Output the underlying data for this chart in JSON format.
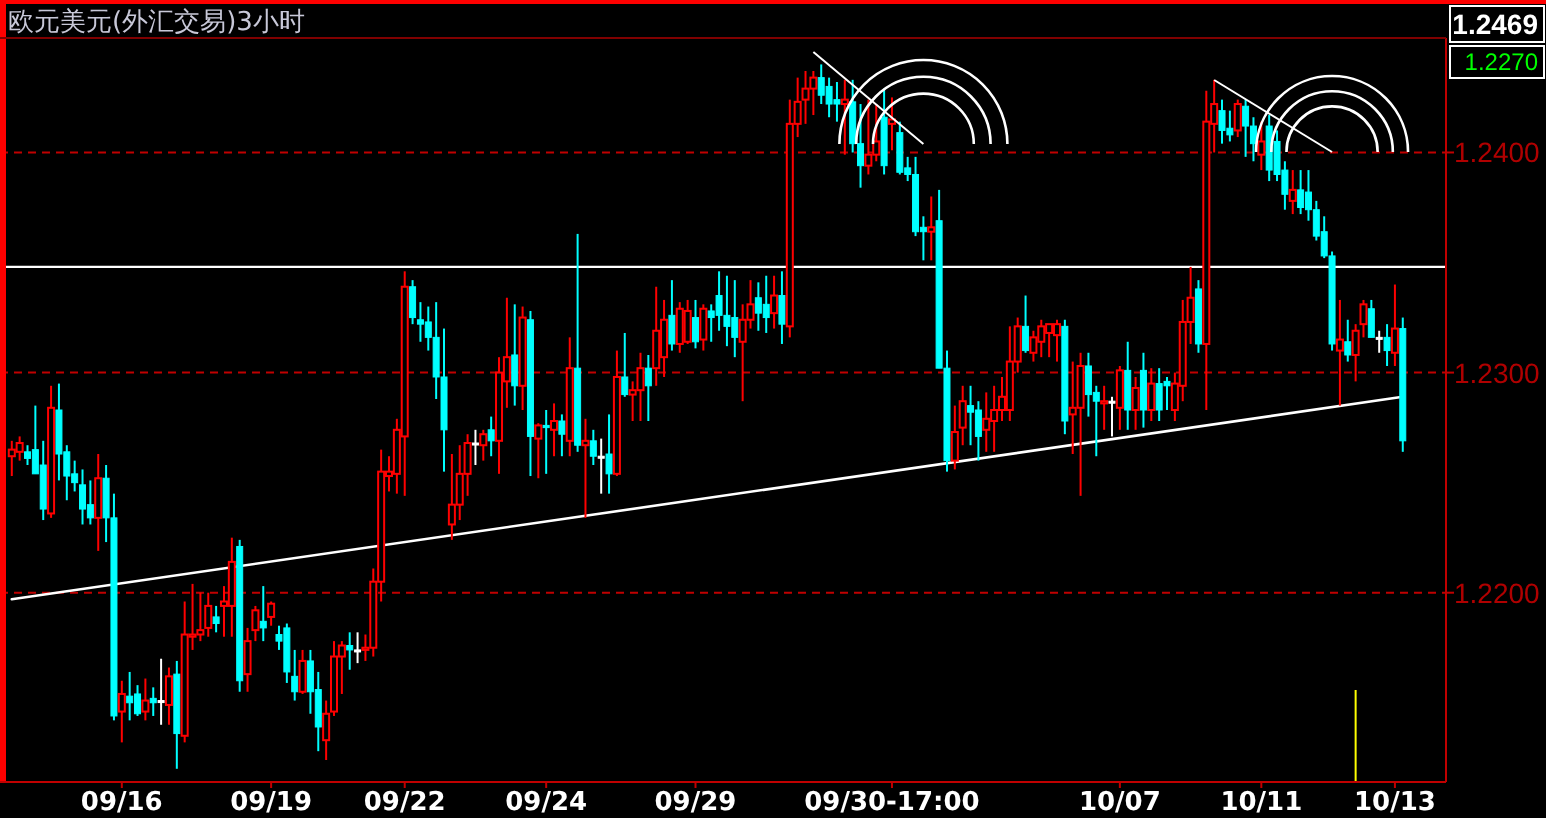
{
  "chart_data": {
    "type": "candlestick",
    "title": "欧元美元(外汇交易)3小时",
    "annotations": [
      "1.2469",
      "1.2270"
    ],
    "ylim": [
      1.2114,
      1.2452
    ],
    "yticks": [
      {
        "value": 1.22,
        "label": "1.2200"
      },
      {
        "value": 1.23,
        "label": "1.2300"
      },
      {
        "value": 1.24,
        "label": "1.2400"
      }
    ],
    "grid": "y",
    "ref_lines": [
      {
        "axis": "y",
        "value": 1.2348,
        "color": "#ffffff"
      }
    ],
    "categories": [
      null,
      null,
      null,
      null,
      null,
      null,
      null,
      null,
      null,
      null,
      null,
      null,
      null,
      null,
      "09/16",
      null,
      null,
      null,
      null,
      null,
      null,
      null,
      null,
      null,
      null,
      null,
      null,
      null,
      null,
      null,
      null,
      null,
      null,
      "09/19",
      null,
      null,
      null,
      null,
      null,
      null,
      null,
      null,
      null,
      null,
      null,
      null,
      null,
      null,
      null,
      null,
      "09/22",
      null,
      null,
      null,
      null,
      null,
      null,
      null,
      null,
      null,
      null,
      null,
      null,
      null,
      null,
      null,
      null,
      null,
      "09/24",
      null,
      null,
      null,
      null,
      null,
      null,
      null,
      null,
      null,
      null,
      null,
      null,
      null,
      null,
      null,
      null,
      null,
      null,
      "09/29",
      null,
      null,
      null,
      null,
      null,
      null,
      null,
      null,
      null,
      null,
      null,
      null,
      null,
      null,
      null,
      null,
      null,
      null,
      null,
      null,
      null,
      null,
      null,
      null,
      "09/30-17:00",
      null,
      null,
      null,
      null,
      null,
      null,
      null,
      null,
      null,
      null,
      null,
      null,
      null,
      null,
      null,
      null,
      null,
      null,
      null,
      null,
      null,
      null,
      null,
      null,
      null,
      null,
      null,
      null,
      "10/07",
      null,
      null,
      null,
      null,
      null,
      null,
      null,
      null,
      null,
      null,
      null,
      null,
      null,
      null,
      null,
      null,
      null,
      "10/11",
      null,
      null,
      null,
      null,
      null,
      null,
      null,
      null,
      null,
      null,
      null,
      null,
      null,
      null,
      null,
      null,
      "10/13",
      null
    ],
    "ohlc": [
      [
        1.2262,
        1.2269,
        1.2253,
        1.2265
      ],
      [
        1.2264,
        1.2271,
        1.226,
        1.2268
      ],
      [
        1.2264,
        1.2267,
        1.2258,
        1.2261
      ],
      [
        1.2265,
        1.2285,
        1.2254,
        1.2254
      ],
      [
        1.2258,
        1.2269,
        1.2233,
        1.2238
      ],
      [
        1.2236,
        1.2294,
        1.2234,
        1.2284
      ],
      [
        1.2283,
        1.2295,
        1.2251,
        1.2263
      ],
      [
        1.2264,
        1.2267,
        1.2242,
        1.2253
      ],
      [
        1.2254,
        1.226,
        1.2246,
        1.225
      ],
      [
        1.2249,
        1.2256,
        1.2231,
        1.2238
      ],
      [
        1.224,
        1.2251,
        1.2231,
        1.2234
      ],
      [
        1.2234,
        1.2263,
        1.2219,
        1.2252
      ],
      [
        1.2252,
        1.2258,
        1.2223,
        1.2234
      ],
      [
        1.2234,
        1.2245,
        1.2142,
        1.2144
      ],
      [
        1.2146,
        1.216,
        1.2132,
        1.2154
      ],
      [
        1.2153,
        1.2164,
        1.2142,
        1.215
      ],
      [
        1.2154,
        1.2158,
        1.2144,
        1.2145
      ],
      [
        1.2146,
        1.2161,
        1.2142,
        1.2151
      ],
      [
        1.2152,
        1.2157,
        1.2144,
        1.215
      ],
      [
        1.2151,
        1.217,
        1.214,
        1.2151
      ],
      [
        1.2149,
        1.2166,
        1.214,
        1.2162
      ],
      [
        1.2163,
        1.2169,
        1.212,
        1.2136
      ],
      [
        1.2135,
        1.2196,
        1.2132,
        1.2181
      ],
      [
        1.218,
        1.2204,
        1.2174,
        1.2181
      ],
      [
        1.2181,
        1.22,
        1.2178,
        1.2183
      ],
      [
        1.2184,
        1.22,
        1.218,
        1.2194
      ],
      [
        1.2189,
        1.2194,
        1.2182,
        1.2186
      ],
      [
        1.2194,
        1.2203,
        1.218,
        1.2196
      ],
      [
        1.2194,
        1.2225,
        1.218,
        1.2214
      ],
      [
        1.2221,
        1.2224,
        1.2155,
        1.216
      ],
      [
        1.2163,
        1.2184,
        1.2155,
        1.2178
      ],
      [
        1.2183,
        1.2194,
        1.2178,
        1.2192
      ],
      [
        1.2187,
        1.2203,
        1.2178,
        1.2184
      ],
      [
        1.2189,
        1.2196,
        1.2185,
        1.2195
      ],
      [
        1.2181,
        1.2185,
        1.2174,
        1.2178
      ],
      [
        1.2184,
        1.2186,
        1.2159,
        1.2164
      ],
      [
        1.2162,
        1.2174,
        1.2151,
        1.2155
      ],
      [
        1.2155,
        1.2174,
        1.2154,
        1.2169
      ],
      [
        1.2169,
        1.2174,
        1.2145,
        1.2155
      ],
      [
        1.2156,
        1.2164,
        1.2128,
        1.2139
      ],
      [
        1.2133,
        1.2151,
        1.2124,
        1.2145
      ],
      [
        1.2146,
        1.2178,
        1.2144,
        1.2171
      ],
      [
        1.2171,
        1.2178,
        1.2154,
        1.2176
      ],
      [
        1.2176,
        1.2182,
        1.2165,
        1.2174
      ],
      [
        1.2174,
        1.2182,
        1.2168,
        1.2174
      ],
      [
        1.2174,
        1.2181,
        1.2169,
        1.2175
      ],
      [
        1.2175,
        1.2211,
        1.2171,
        1.2205
      ],
      [
        1.2205,
        1.2265,
        1.2196,
        1.2255
      ],
      [
        1.2253,
        1.2262,
        1.2246,
        1.2255
      ],
      [
        1.2254,
        1.2279,
        1.2245,
        1.2274
      ],
      [
        1.2271,
        1.2346,
        1.2244,
        1.2339
      ],
      [
        1.2339,
        1.2342,
        1.2322,
        1.2325
      ],
      [
        1.2324,
        1.2332,
        1.2314,
        1.2322
      ],
      [
        1.2323,
        1.233,
        1.231,
        1.2316
      ],
      [
        1.2316,
        1.2332,
        1.2288,
        1.2298
      ],
      [
        1.2298,
        1.232,
        1.2255,
        1.2274
      ],
      [
        1.2231,
        1.2263,
        1.2224,
        1.224
      ],
      [
        1.224,
        1.2267,
        1.2233,
        1.2254
      ],
      [
        1.2254,
        1.2272,
        1.2244,
        1.2268
      ],
      [
        1.2268,
        1.2274,
        1.2258,
        1.2268
      ],
      [
        1.2267,
        1.2274,
        1.226,
        1.2272
      ],
      [
        1.2274,
        1.228,
        1.2262,
        1.2269
      ],
      [
        1.2269,
        1.2307,
        1.2254,
        1.23
      ],
      [
        1.2296,
        1.2334,
        1.2284,
        1.2307
      ],
      [
        1.2308,
        1.2331,
        1.2285,
        1.2294
      ],
      [
        1.2294,
        1.233,
        1.2283,
        1.2325
      ],
      [
        1.2324,
        1.2328,
        1.2253,
        1.2271
      ],
      [
        1.227,
        1.2277,
        1.2252,
        1.2276
      ],
      [
        1.2276,
        1.2283,
        1.2254,
        1.2275
      ],
      [
        1.2274,
        1.2286,
        1.2262,
        1.2278
      ],
      [
        1.2278,
        1.2281,
        1.2262,
        1.2272
      ],
      [
        1.2269,
        1.2316,
        1.2262,
        1.2302
      ],
      [
        1.2302,
        1.2363,
        1.2264,
        1.2267
      ],
      [
        1.2267,
        1.2279,
        1.2234,
        1.2269
      ],
      [
        1.2269,
        1.2274,
        1.2258,
        1.2262
      ],
      [
        1.2262,
        1.227,
        1.2245,
        1.2262
      ],
      [
        1.2263,
        1.2281,
        1.2245,
        1.2254
      ],
      [
        1.2254,
        1.231,
        1.2253,
        1.2298
      ],
      [
        1.2298,
        1.2318,
        1.2289,
        1.229
      ],
      [
        1.229,
        1.2296,
        1.2278,
        1.2292
      ],
      [
        1.2292,
        1.2309,
        1.2278,
        1.2302
      ],
      [
        1.2302,
        1.2308,
        1.2278,
        1.2294
      ],
      [
        1.2302,
        1.2339,
        1.2294,
        1.2319
      ],
      [
        1.2307,
        1.2333,
        1.2298,
        1.2324
      ],
      [
        1.2326,
        1.2342,
        1.231,
        1.2313
      ],
      [
        1.2313,
        1.2332,
        1.2309,
        1.2329
      ],
      [
        1.2314,
        1.2333,
        1.2313,
        1.2328
      ],
      [
        1.2325,
        1.2333,
        1.2311,
        1.2314
      ],
      [
        1.2315,
        1.2331,
        1.231,
        1.2329
      ],
      [
        1.2328,
        1.2331,
        1.2314,
        1.2325
      ],
      [
        1.2335,
        1.2346,
        1.2319,
        1.2326
      ],
      [
        1.2326,
        1.2344,
        1.2312,
        1.2321
      ],
      [
        1.2325,
        1.2342,
        1.2307,
        1.2316
      ],
      [
        1.2314,
        1.2331,
        1.2287,
        1.2324
      ],
      [
        1.2324,
        1.2342,
        1.232,
        1.2331
      ],
      [
        1.2334,
        1.2341,
        1.2319,
        1.2327
      ],
      [
        1.2331,
        1.2344,
        1.2318,
        1.2325
      ],
      [
        1.2327,
        1.2344,
        1.232,
        1.2335
      ],
      [
        1.2335,
        1.2346,
        1.2313,
        1.2322
      ],
      [
        1.2321,
        1.2424,
        1.2316,
        1.2413
      ],
      [
        1.2413,
        1.2434,
        1.2407,
        1.2423
      ],
      [
        1.2424,
        1.2437,
        1.2413,
        1.2429
      ],
      [
        1.2429,
        1.2437,
        1.2417,
        1.2434
      ],
      [
        1.2434,
        1.244,
        1.2422,
        1.2426
      ],
      [
        1.243,
        1.2434,
        1.2416,
        1.2422
      ],
      [
        1.2424,
        1.2432,
        1.2414,
        1.2422
      ],
      [
        1.2422,
        1.2433,
        1.2399,
        1.2424
      ],
      [
        1.2423,
        1.2433,
        1.24,
        1.2404
      ],
      [
        1.2404,
        1.2422,
        1.2384,
        1.2394
      ],
      [
        1.2394,
        1.2424,
        1.239,
        1.2399
      ],
      [
        1.2399,
        1.2422,
        1.2396,
        1.2405
      ],
      [
        1.2416,
        1.2429,
        1.239,
        1.2394
      ],
      [
        1.2413,
        1.2425,
        1.2401,
        1.2415
      ],
      [
        1.2409,
        1.2414,
        1.239,
        1.2391
      ],
      [
        1.2393,
        1.2398,
        1.2387,
        1.239
      ],
      [
        1.239,
        1.2398,
        1.2362,
        1.2364
      ],
      [
        1.2366,
        1.2371,
        1.2351,
        1.2364
      ],
      [
        1.2364,
        1.238,
        1.2351,
        1.2366
      ],
      [
        1.2369,
        1.2383,
        1.2302,
        1.2302
      ],
      [
        1.2302,
        1.231,
        1.2255,
        1.226
      ],
      [
        1.226,
        1.2285,
        1.2256,
        1.2273
      ],
      [
        1.2275,
        1.2294,
        1.2267,
        1.2287
      ],
      [
        1.2285,
        1.2294,
        1.2267,
        1.2282
      ],
      [
        1.2283,
        1.2287,
        1.226,
        1.2271
      ],
      [
        1.2274,
        1.2291,
        1.2264,
        1.2279
      ],
      [
        1.2278,
        1.2294,
        1.2264,
        1.2283
      ],
      [
        1.2283,
        1.2298,
        1.2278,
        1.2289
      ],
      [
        1.2283,
        1.2321,
        1.2278,
        1.2305
      ],
      [
        1.2305,
        1.2325,
        1.23,
        1.2321
      ],
      [
        1.2321,
        1.2335,
        1.2309,
        1.231
      ],
      [
        1.2309,
        1.2319,
        1.2305,
        1.2316
      ],
      [
        1.2314,
        1.2324,
        1.2307,
        1.2321
      ],
      [
        1.2318,
        1.2322,
        1.2307,
        1.2322
      ],
      [
        1.2317,
        1.2324,
        1.2305,
        1.2322
      ],
      [
        1.2321,
        1.2324,
        1.2272,
        1.2278
      ],
      [
        1.2281,
        1.2305,
        1.2263,
        1.2284
      ],
      [
        1.2284,
        1.2309,
        1.2244,
        1.2303
      ],
      [
        1.2303,
        1.2309,
        1.228,
        1.229
      ],
      [
        1.2291,
        1.2294,
        1.2262,
        1.2287
      ],
      [
        1.2286,
        1.2294,
        1.2274,
        1.2287
      ],
      [
        1.2287,
        1.2289,
        1.2271,
        1.2287
      ],
      [
        1.2284,
        1.2303,
        1.2274,
        1.2301
      ],
      [
        1.2301,
        1.2314,
        1.2274,
        1.2283
      ],
      [
        1.2283,
        1.2298,
        1.2274,
        1.2293
      ],
      [
        1.2301,
        1.2309,
        1.2275,
        1.2283
      ],
      [
        1.2283,
        1.2302,
        1.2278,
        1.2295
      ],
      [
        1.2295,
        1.2302,
        1.2278,
        1.2283
      ],
      [
        1.2296,
        1.2298,
        1.2283,
        1.2294
      ],
      [
        1.2283,
        1.23,
        1.2278,
        1.2295
      ],
      [
        1.2294,
        1.2333,
        1.2287,
        1.2323
      ],
      [
        1.2323,
        1.2348,
        1.2313,
        1.2334
      ],
      [
        1.2338,
        1.2342,
        1.2309,
        1.2313
      ],
      [
        1.2313,
        1.2428,
        1.2283,
        1.2414
      ],
      [
        1.2413,
        1.2433,
        1.24,
        1.2422
      ],
      [
        1.2419,
        1.2424,
        1.2404,
        1.241
      ],
      [
        1.2411,
        1.2419,
        1.2405,
        1.2408
      ],
      [
        1.241,
        1.2424,
        1.2407,
        1.2422
      ],
      [
        1.2421,
        1.2424,
        1.2398,
        1.2412
      ],
      [
        1.2412,
        1.2416,
        1.2396,
        1.2404
      ],
      [
        1.2399,
        1.2414,
        1.2392,
        1.2405
      ],
      [
        1.2412,
        1.2417,
        1.2387,
        1.2392
      ],
      [
        1.2405,
        1.241,
        1.2387,
        1.239
      ],
      [
        1.2392,
        1.2396,
        1.2374,
        1.2381
      ],
      [
        1.2378,
        1.2392,
        1.2372,
        1.2383
      ],
      [
        1.2383,
        1.2392,
        1.2372,
        1.2375
      ],
      [
        1.2382,
        1.2392,
        1.2369,
        1.2374
      ],
      [
        1.2374,
        1.2378,
        1.236,
        1.2362
      ],
      [
        1.2364,
        1.2371,
        1.2352,
        1.2353
      ],
      [
        1.2353,
        1.2355,
        1.231,
        1.2313
      ],
      [
        1.231,
        1.2333,
        1.2285,
        1.2315
      ],
      [
        1.2314,
        1.2324,
        1.2305,
        1.2308
      ],
      [
        1.2308,
        1.2322,
        1.2296,
        1.2319
      ],
      [
        1.2322,
        1.2333,
        1.2316,
        1.2331
      ],
      [
        1.2329,
        1.2333,
        1.2316,
        1.2316
      ],
      [
        1.2316,
        1.2319,
        1.2309,
        1.2316
      ],
      [
        1.2316,
        1.2322,
        1.2303,
        1.231
      ],
      [
        1.2309,
        1.234,
        1.2303,
        1.232
      ],
      [
        1.232,
        1.2325,
        1.2264,
        1.2269
      ]
    ],
    "colors": [
      "#ff0000",
      "#ff0000",
      "#00ffff",
      "#00ffff",
      "#00ffff",
      "#ff0000",
      "#00ffff",
      "#00ffff",
      "#00ffff",
      "#00ffff",
      "#00ffff",
      "#ff0000",
      "#00ffff",
      "#00ffff",
      "#ff0000",
      "#00ffff",
      "#00ffff",
      "#ff0000",
      "#00ffff",
      "#ffffff",
      "#ff0000",
      "#00ffff",
      "#ff0000",
      "#ff0000",
      "#ff0000",
      "#ff0000",
      "#00ffff",
      "#ff0000",
      "#ff0000",
      "#00ffff",
      "#ff0000",
      "#ff0000",
      "#00ffff",
      "#ff0000",
      "#00ffff",
      "#00ffff",
      "#00ffff",
      "#ff0000",
      "#00ffff",
      "#00ffff",
      "#ff0000",
      "#ff0000",
      "#ff0000",
      "#00ffff",
      "#ffffff",
      "#ff0000",
      "#ff0000",
      "#ff0000",
      "#ff0000",
      "#ff0000",
      "#ff0000",
      "#00ffff",
      "#00ffff",
      "#00ffff",
      "#00ffff",
      "#00ffff",
      "#ff0000",
      "#ff0000",
      "#ff0000",
      "#ffffff",
      "#ff0000",
      "#00ffff",
      "#ff0000",
      "#ff0000",
      "#00ffff",
      "#ff0000",
      "#00ffff",
      "#ff0000",
      "#00ffff",
      "#ff0000",
      "#00ffff",
      "#ff0000",
      "#00ffff",
      "#ff0000",
      "#00ffff",
      "#ffffff",
      "#00ffff",
      "#ff0000",
      "#00ffff",
      "#ff0000",
      "#ff0000",
      "#00ffff",
      "#ff0000",
      "#ff0000",
      "#00ffff",
      "#ff0000",
      "#ff0000",
      "#00ffff",
      "#ff0000",
      "#00ffff",
      "#00ffff",
      "#00ffff",
      "#00ffff",
      "#ff0000",
      "#ff0000",
      "#00ffff",
      "#00ffff",
      "#ff0000",
      "#00ffff",
      "#ff0000",
      "#ff0000",
      "#ff0000",
      "#ff0000",
      "#00ffff",
      "#00ffff",
      "#00ffff",
      "#ff0000",
      "#00ffff",
      "#00ffff",
      "#ff0000",
      "#ff0000",
      "#00ffff",
      "#ff0000",
      "#00ffff",
      "#00ffff",
      "#00ffff",
      "#00ffff",
      "#ff0000",
      "#00ffff",
      "#00ffff",
      "#ff0000",
      "#ff0000",
      "#00ffff",
      "#00ffff",
      "#ff0000",
      "#ff0000",
      "#ff0000",
      "#ff0000",
      "#ff0000",
      "#00ffff",
      "#ff0000",
      "#ff0000",
      "#ff0000",
      "#ff0000",
      "#00ffff",
      "#ff0000",
      "#ff0000",
      "#00ffff",
      "#00ffff",
      "#ff0000",
      "#ffffff",
      "#ff0000",
      "#00ffff",
      "#ff0000",
      "#00ffff",
      "#ff0000",
      "#00ffff",
      "#00ffff",
      "#ff0000",
      "#ff0000",
      "#ff0000",
      "#00ffff",
      "#ff0000",
      "#ff0000",
      "#00ffff",
      "#00ffff",
      "#ff0000",
      "#00ffff",
      "#00ffff",
      "#ff0000",
      "#00ffff",
      "#00ffff",
      "#00ffff",
      "#ff0000",
      "#00ffff",
      "#00ffff",
      "#00ffff",
      "#00ffff",
      "#00ffff",
      "#ff0000",
      "#00ffff",
      "#ff0000",
      "#ff0000",
      "#00ffff",
      "#ffffff",
      "#00ffff",
      "#ff0000",
      "#00ffff"
    ],
    "series": [
      {
        "type": "line",
        "color": "#ffffff",
        "values": [
          1.2197,
          null,
          null,
          null,
          null,
          null,
          null,
          null,
          null,
          null,
          null,
          null,
          null,
          null,
          null,
          null,
          null,
          null,
          null,
          null,
          null,
          null,
          null,
          null,
          null,
          null,
          null,
          null,
          null,
          null,
          null,
          null,
          null,
          null,
          null,
          null,
          null,
          null,
          null,
          null,
          null,
          null,
          null,
          null,
          null,
          null,
          null,
          null,
          null,
          null,
          null,
          null,
          null,
          null,
          null,
          null,
          null,
          null,
          null,
          null,
          null,
          null,
          null,
          null,
          null,
          null,
          null,
          null,
          null,
          null,
          null,
          null,
          null,
          null,
          null,
          null,
          null,
          null,
          null,
          null,
          null,
          null,
          null,
          null,
          null,
          null,
          null,
          null,
          null,
          null,
          null,
          null,
          null,
          null,
          null,
          null,
          null,
          null,
          null,
          null,
          null,
          null,
          null,
          null,
          null,
          null,
          null,
          null,
          null,
          null,
          null,
          null,
          null,
          null,
          null,
          null,
          null,
          null,
          null,
          null,
          null,
          null,
          null,
          null,
          null,
          null,
          null,
          null,
          null,
          null,
          null,
          null,
          null,
          null,
          null,
          null,
          null,
          null,
          null,
          null,
          null,
          null,
          null,
          null,
          null,
          null,
          null,
          null,
          null,
          null,
          null,
          null,
          null,
          null,
          null,
          null,
          null,
          null,
          null,
          null,
          null,
          null,
          null,
          null,
          null,
          null,
          null,
          null,
          null,
          null,
          null,
          null,
          null,
          null,
          null,
          null,
          null,
          1.2289
        ]
      }
    ]
  }
}
